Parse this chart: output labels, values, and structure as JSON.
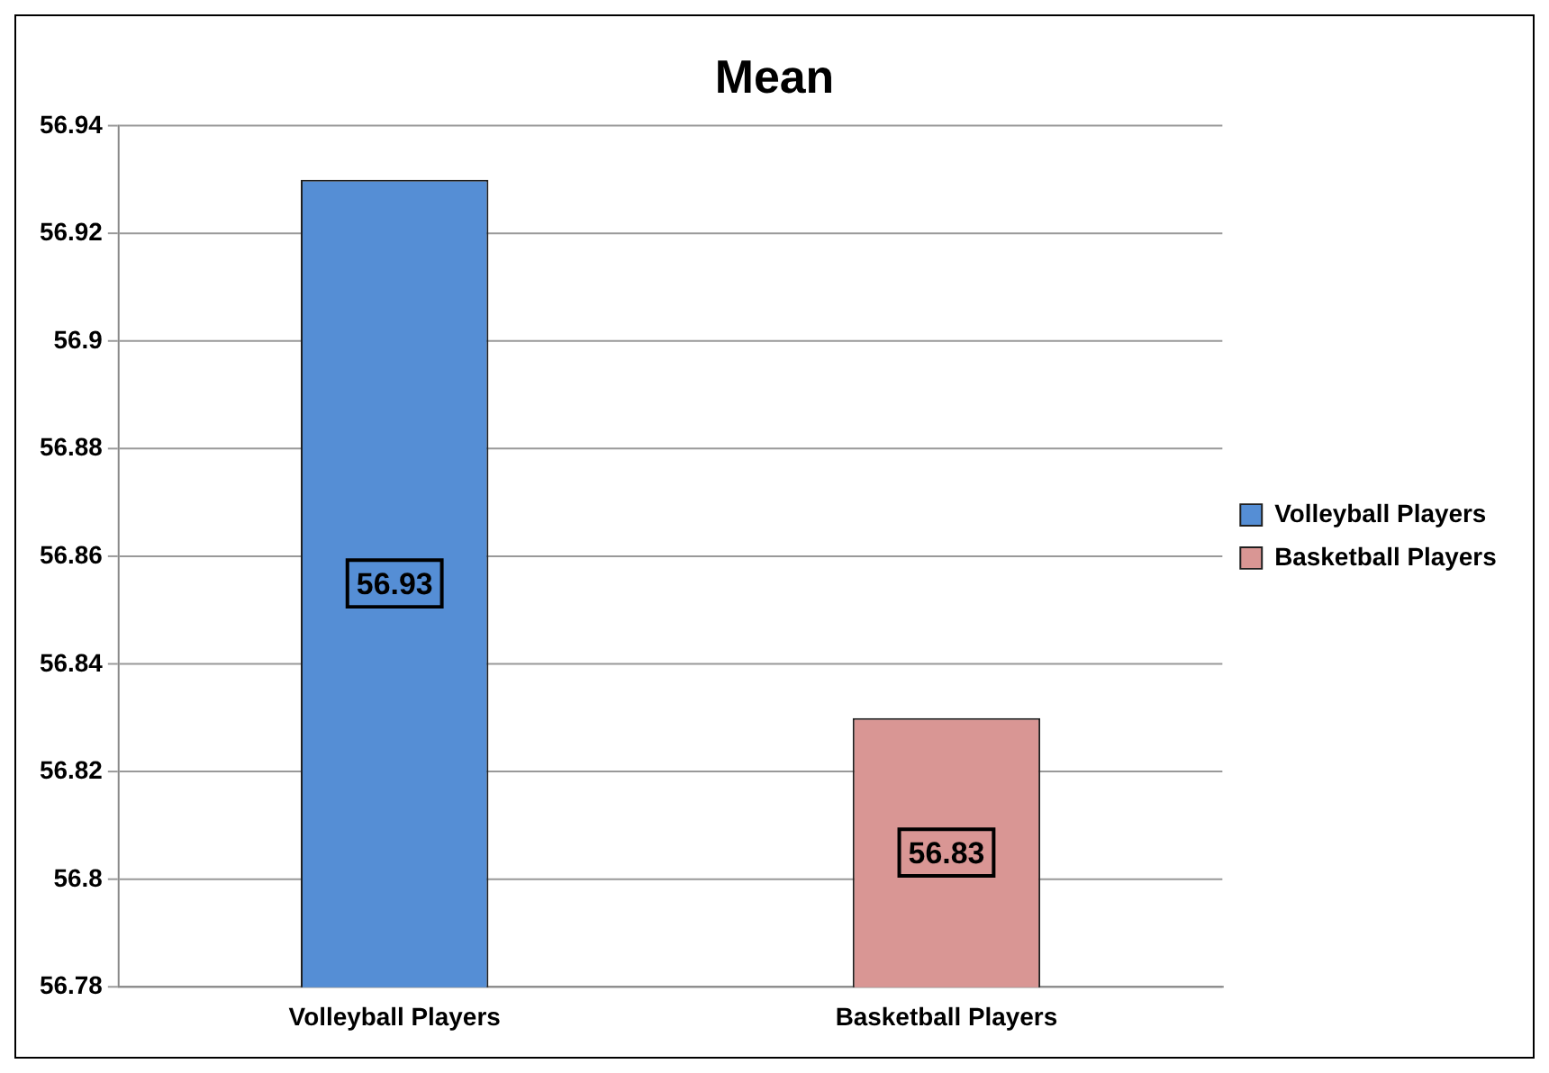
{
  "chart_data": {
    "type": "bar",
    "title": "Mean",
    "categories": [
      "Volleyball Players",
      "Basketball Players"
    ],
    "series": [
      {
        "name": "Volleyball Players",
        "color": "#558ed5",
        "values": [
          56.93,
          null
        ]
      },
      {
        "name": "Basketball Players",
        "color": "#d99694",
        "values": [
          null,
          56.83
        ]
      }
    ],
    "ylim": [
      56.78,
      56.94
    ],
    "yticks": [
      56.78,
      56.8,
      56.82,
      56.84,
      56.86,
      56.88,
      56.9,
      56.92,
      56.94
    ],
    "grid": "y",
    "legend": "right",
    "data_labels": true
  }
}
